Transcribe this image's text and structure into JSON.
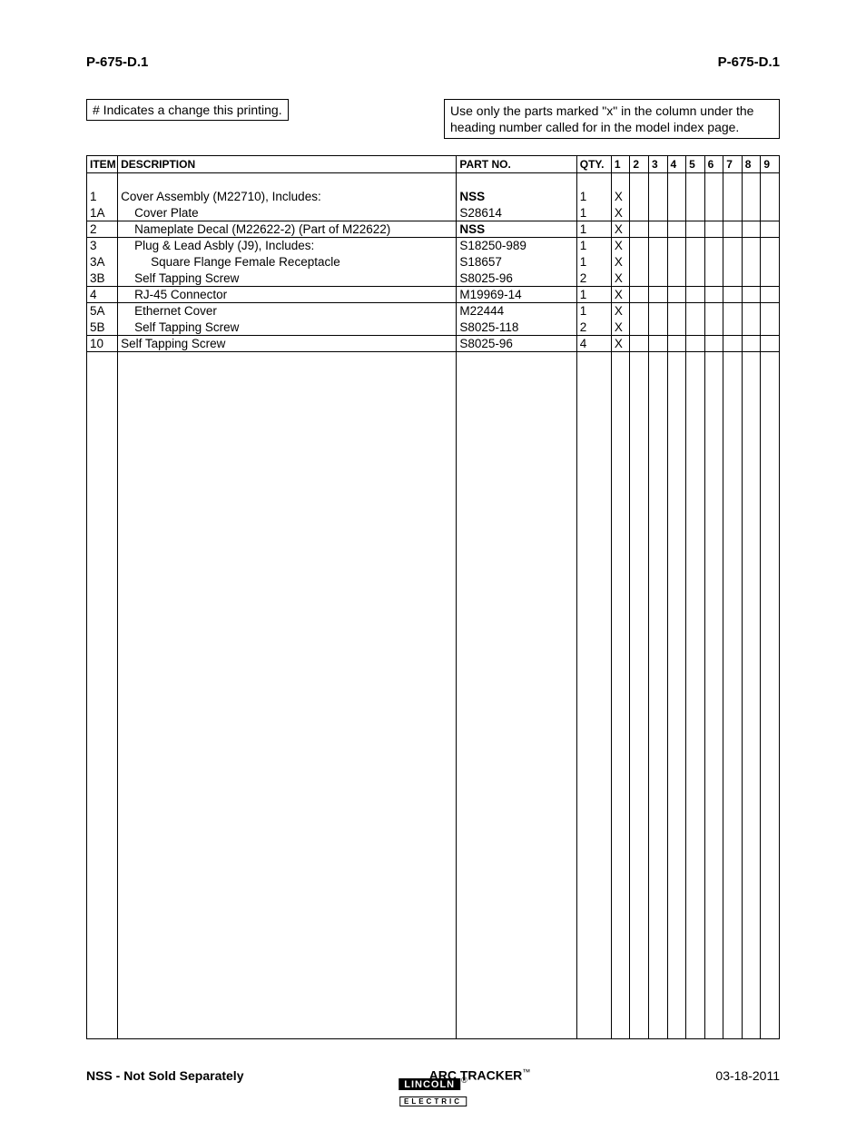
{
  "header": {
    "left": "P-675-D.1",
    "right": "P-675-D.1"
  },
  "notes": {
    "left": "# Indicates a change this printing.",
    "right": "Use only the parts marked \"x\" in the column under the heading number called for in the model index page."
  },
  "table": {
    "headers": {
      "item": "ITEM",
      "desc": "DESCRIPTION",
      "part": "PART NO.",
      "qty": "QTY.",
      "cols": [
        "1",
        "2",
        "3",
        "4",
        "5",
        "6",
        "7",
        "8",
        "9"
      ]
    },
    "rows": [
      {
        "item": "1",
        "indent": 0,
        "desc": "Cover Assembly (M22710), Includes:",
        "part": "NSS",
        "part_bold": true,
        "qty": "1",
        "marks": [
          "X",
          "",
          "",
          "",
          "",
          "",
          "",
          "",
          ""
        ],
        "underline": false
      },
      {
        "item": "1A",
        "indent": 1,
        "desc": "Cover Plate",
        "part": "S28614",
        "part_bold": false,
        "qty": "1",
        "marks": [
          "X",
          "",
          "",
          "",
          "",
          "",
          "",
          "",
          ""
        ],
        "underline": true
      },
      {
        "item": "2",
        "indent": 1,
        "desc": "Nameplate Decal (M22622-2) (Part of M22622)",
        "part": "NSS",
        "part_bold": true,
        "qty": "1",
        "marks": [
          "X",
          "",
          "",
          "",
          "",
          "",
          "",
          "",
          ""
        ],
        "underline": true
      },
      {
        "item": "3",
        "indent": 1,
        "desc": "Plug & Lead Asbly (J9), Includes:",
        "part": "S18250-989",
        "part_bold": false,
        "qty": "1",
        "marks": [
          "X",
          "",
          "",
          "",
          "",
          "",
          "",
          "",
          ""
        ],
        "underline": false
      },
      {
        "item": "3A",
        "indent": 2,
        "desc": "Square Flange Female Receptacle",
        "part": "S18657",
        "part_bold": false,
        "qty": "1",
        "marks": [
          "X",
          "",
          "",
          "",
          "",
          "",
          "",
          "",
          ""
        ],
        "underline": false
      },
      {
        "item": "3B",
        "indent": 1,
        "desc": "Self Tapping Screw",
        "part": "S8025-96",
        "part_bold": false,
        "qty": "2",
        "marks": [
          "X",
          "",
          "",
          "",
          "",
          "",
          "",
          "",
          ""
        ],
        "underline": true
      },
      {
        "item": "4",
        "indent": 1,
        "desc": "RJ-45 Connector",
        "part": "M19969-14",
        "part_bold": false,
        "qty": "1",
        "marks": [
          "X",
          "",
          "",
          "",
          "",
          "",
          "",
          "",
          ""
        ],
        "underline": true
      },
      {
        "item": "5A",
        "indent": 1,
        "desc": "Ethernet Cover",
        "part": "M22444",
        "part_bold": false,
        "qty": "1",
        "marks": [
          "X",
          "",
          "",
          "",
          "",
          "",
          "",
          "",
          ""
        ],
        "underline": false
      },
      {
        "item": "5B",
        "indent": 1,
        "desc": "Self Tapping Screw",
        "part": "S8025-118",
        "part_bold": false,
        "qty": "2",
        "marks": [
          "X",
          "",
          "",
          "",
          "",
          "",
          "",
          "",
          ""
        ],
        "underline": true
      },
      {
        "item": "10",
        "indent": 0,
        "desc": "Self Tapping Screw",
        "part": "S8025-96",
        "part_bold": false,
        "qty": "4",
        "marks": [
          "X",
          "",
          "",
          "",
          "",
          "",
          "",
          "",
          ""
        ],
        "underline": true
      }
    ]
  },
  "footer": {
    "left": "NSS - Not Sold Separately",
    "center": "ARC TRACKER",
    "tm": "™",
    "right": "03-18-2011",
    "logo_top": "LINCOLN",
    "logo_reg": "®",
    "logo_bottom": "ELECTRIC"
  }
}
